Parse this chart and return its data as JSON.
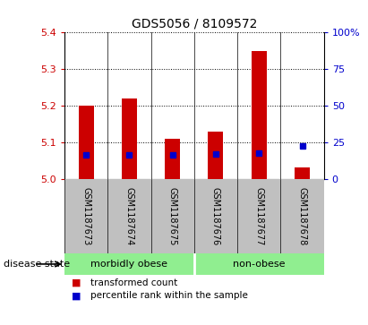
{
  "title": "GDS5056 / 8109572",
  "samples": [
    "GSM1187673",
    "GSM1187674",
    "GSM1187675",
    "GSM1187676",
    "GSM1187677",
    "GSM1187678"
  ],
  "bar_values": [
    5.2,
    5.22,
    5.11,
    5.13,
    5.35,
    5.03
  ],
  "bar_base": 5.0,
  "percentile_values": [
    5.065,
    5.065,
    5.065,
    5.068,
    5.07,
    5.09
  ],
  "ylim_left": [
    5.0,
    5.4
  ],
  "ylim_right": [
    0,
    100
  ],
  "yticks_left": [
    5.0,
    5.1,
    5.2,
    5.3,
    5.4
  ],
  "yticks_right": [
    0,
    25,
    50,
    75,
    100
  ],
  "ytick_labels_right": [
    "0",
    "25",
    "50",
    "75",
    "100%"
  ],
  "groups": [
    {
      "label": "morbidly obese",
      "indices": [
        0,
        1,
        2
      ],
      "color": "#90EE90"
    },
    {
      "label": "non-obese",
      "indices": [
        3,
        4,
        5
      ],
      "color": "#90EE90"
    }
  ],
  "disease_state_label": "disease state",
  "bar_color": "#CC0000",
  "percentile_color": "#0000CC",
  "tick_color_left": "#CC0000",
  "tick_color_right": "#0000CC",
  "grid_color": "#000000",
  "xlabel_bg": "#C0C0C0",
  "legend_bar_label": "transformed count",
  "legend_pct_label": "percentile rank within the sample",
  "bar_width": 0.35
}
